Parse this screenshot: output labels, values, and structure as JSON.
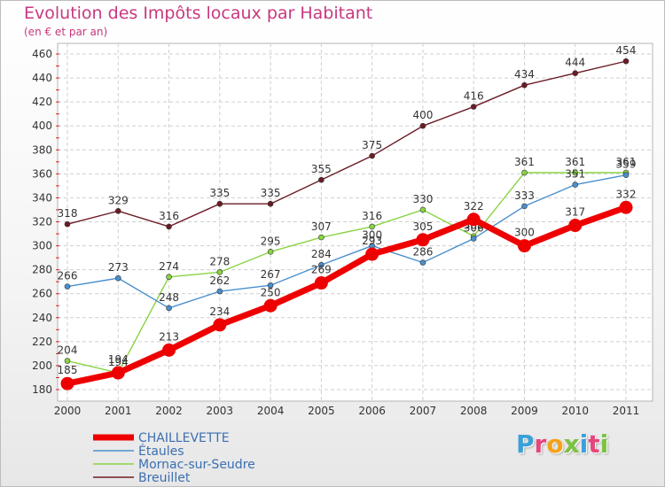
{
  "header": {
    "title": "Evolution des Impôts locaux par Habitant",
    "subtitle": "(en € et par an)"
  },
  "logo": {
    "text": "Proxiti",
    "colors": [
      "#3aa0d8",
      "#e5467c",
      "#f2a21b",
      "#7cc242",
      "#3aa0d8",
      "#e5467c",
      "#7cc242"
    ]
  },
  "chart_data": {
    "type": "line",
    "title": "Evolution des Impôts locaux par Habitant",
    "subtitle": "(en € et par an)",
    "x": [
      "2000",
      "2001",
      "2002",
      "2003",
      "2004",
      "2005",
      "2006",
      "2007",
      "2008",
      "2009",
      "2010",
      "2011"
    ],
    "ylim": [
      180,
      460
    ],
    "yticks": [
      180,
      200,
      220,
      240,
      260,
      280,
      300,
      320,
      340,
      360,
      380,
      400,
      420,
      440,
      460
    ],
    "grid": true,
    "legend_position": "bottom-left",
    "series": [
      {
        "name": "Breuillet",
        "color": "#6b1c26",
        "values": [
          318,
          329,
          316,
          335,
          335,
          355,
          375,
          400,
          416,
          434,
          444,
          454
        ]
      },
      {
        "name": "Mornac-sur-Seudre",
        "color": "#8ad444",
        "values": [
          204,
          194,
          274,
          278,
          295,
          307,
          316,
          330,
          308,
          361,
          361,
          361
        ]
      },
      {
        "name": "Étaules",
        "color": "#4a8fcd",
        "values": [
          266,
          273,
          248,
          262,
          267,
          284,
          300,
          286,
          306,
          333,
          351,
          359
        ]
      },
      {
        "name": "CHAILLEVETTE",
        "color": "#ee0000",
        "values": [
          185,
          194,
          213,
          234,
          250,
          269,
          293,
          305,
          322,
          300,
          317,
          332
        ]
      }
    ],
    "legend": [
      "CHAILLEVETTE",
      "Étaules",
      "Mornac-sur-Seudre",
      "Breuillet"
    ]
  }
}
